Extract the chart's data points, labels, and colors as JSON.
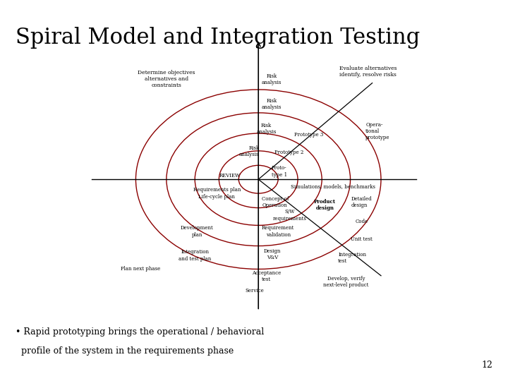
{
  "title": "Spiral Model and Integration Testing",
  "title_fontsize": 22,
  "background_color": "#ffffff",
  "spiral_color": "#8b0000",
  "text_color": "#000000",
  "bullet_text_line1": "• Rapid prototyping brings the operational / behavioral",
  "bullet_text_line2": "  profile of the system in the requirements phase",
  "page_number": "12"
}
